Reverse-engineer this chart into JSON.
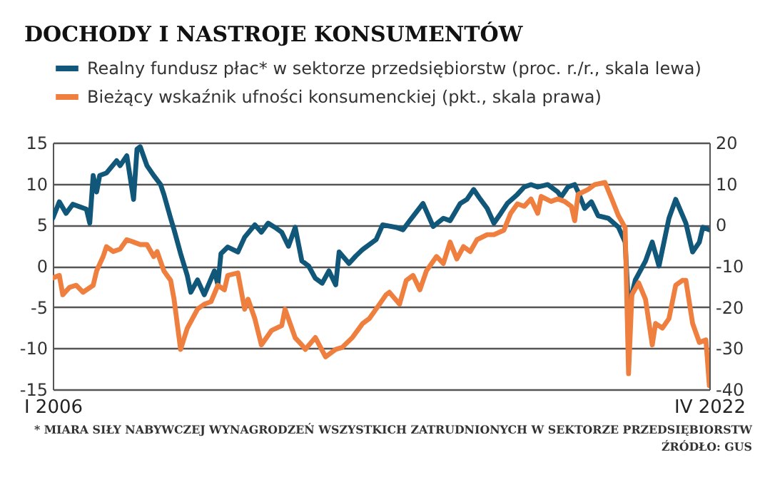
{
  "chart_data": {
    "type": "line",
    "title": "DOCHODY I NASTROJE KONSUMENTÓW",
    "annotations": [
      "* MIARA SIŁY NABYWCZEJ WYNAGRODZEŃ WSZYSTKICH ZATRUDNIONYCH W SEKTORZE PRZEDSIĘBIORSTW",
      "ŹRÓDŁO: GUS"
    ],
    "xlim": [
      "2006-01",
      "2022-04"
    ],
    "xticks": [
      {
        "value": "2006-01",
        "label": "I 2006"
      },
      {
        "value": "2022-04",
        "label": "IV 2022"
      }
    ],
    "ylim": [
      -15,
      15
    ],
    "yticks": [
      -15,
      -10,
      -5,
      0,
      5,
      10,
      15
    ],
    "y2lim": [
      -40,
      20
    ],
    "y2ticks": [
      -40,
      -30,
      -20,
      -10,
      0,
      10,
      20
    ],
    "grid": "y",
    "legend": "top left",
    "line_style": "solid",
    "series": [
      {
        "name": "Realny fundusz płac* w sektorze przedsiębiorstw (proc. r./r., skala lewa)",
        "color": "#11577a",
        "x": [
          "2006-01",
          "2006-03",
          "2006-05",
          "2006-07",
          "2006-09",
          "2006-11",
          "2006-12",
          "2007-01",
          "2007-02",
          "2007-03",
          "2007-05",
          "2007-08",
          "2007-09",
          "2007-11",
          "2008-01",
          "2008-02",
          "2008-03",
          "2008-05",
          "2008-07",
          "2008-09",
          "2008-10",
          "2008-12",
          "2009-01",
          "2009-03",
          "2009-05",
          "2009-06",
          "2009-08",
          "2009-10",
          "2010-01",
          "2010-02",
          "2010-03",
          "2010-05",
          "2010-08",
          "2010-10",
          "2011-01",
          "2011-03",
          "2011-05",
          "2011-07",
          "2011-09",
          "2011-11",
          "2012-01",
          "2012-03",
          "2012-05",
          "2012-07",
          "2012-09",
          "2012-11",
          "2013-01",
          "2013-02",
          "2013-05",
          "2013-07",
          "2013-09",
          "2013-11",
          "2014-01",
          "2014-03",
          "2014-07",
          "2014-09",
          "2014-11",
          "2015-03",
          "2015-06",
          "2015-09",
          "2015-11",
          "2016-02",
          "2016-04",
          "2016-06",
          "2016-08",
          "2016-10",
          "2016-12",
          "2017-02",
          "2017-04",
          "2017-07",
          "2017-09",
          "2017-11",
          "2018-01",
          "2018-04",
          "2018-07",
          "2018-08",
          "2018-10",
          "2018-12",
          "2019-01",
          "2019-03",
          "2019-05",
          "2019-07",
          "2019-10",
          "2020-01",
          "2020-03",
          "2020-04",
          "2020-06",
          "2020-09",
          "2020-11",
          "2021-01",
          "2021-04",
          "2021-06",
          "2021-09",
          "2021-11",
          "2022-01",
          "2022-02",
          "2022-04"
        ],
        "values": [
          5.8,
          7.8,
          6.4,
          7.5,
          7.2,
          6.9,
          5.2,
          11.0,
          9.0,
          11.0,
          11.3,
          12.8,
          12.2,
          13.4,
          8.1,
          14.2,
          14.5,
          12.2,
          11.0,
          9.9,
          8.7,
          5.8,
          4.4,
          1.5,
          -1.2,
          -3.2,
          -1.7,
          -3.5,
          -0.6,
          -2.3,
          1.5,
          2.3,
          1.7,
          3.5,
          5.0,
          4.1,
          5.2,
          4.7,
          4.1,
          2.4,
          4.7,
          0.6,
          0.0,
          -1.5,
          -2.1,
          -0.6,
          -2.3,
          1.7,
          0.3,
          1.2,
          2.0,
          2.6,
          3.2,
          5.0,
          4.7,
          4.4,
          5.5,
          7.6,
          4.8,
          5.8,
          5.5,
          7.6,
          8.1,
          9.3,
          8.1,
          7.0,
          5.2,
          6.4,
          7.6,
          8.7,
          9.6,
          9.9,
          9.6,
          9.9,
          9.0,
          8.4,
          9.6,
          9.9,
          9.0,
          7.0,
          7.8,
          6.1,
          5.8,
          4.7,
          2.9,
          -5.2,
          -1.7,
          0.6,
          2.9,
          0.0,
          5.8,
          8.1,
          5.2,
          1.7,
          2.9,
          4.7,
          4.4
        ]
      },
      {
        "name": "Bieżący wskaźnik ufności konsumenckiej (pkt., skala prawa)",
        "color": "#ef7f3f",
        "axis": "y2",
        "x": [
          "2006-01",
          "2006-03",
          "2006-04",
          "2006-06",
          "2006-08",
          "2006-10",
          "2007-01",
          "2007-02",
          "2007-04",
          "2007-05",
          "2007-07",
          "2007-09",
          "2007-11",
          "2008-01",
          "2008-03",
          "2008-05",
          "2008-07",
          "2008-08",
          "2008-10",
          "2008-12",
          "2009-01",
          "2009-03",
          "2009-05",
          "2009-08",
          "2009-10",
          "2009-12",
          "2010-02",
          "2010-04",
          "2010-05",
          "2010-08",
          "2010-10",
          "2010-11",
          "2011-01",
          "2011-03",
          "2011-06",
          "2011-09",
          "2011-10",
          "2012-01",
          "2012-03",
          "2012-04",
          "2012-07",
          "2012-10",
          "2013-01",
          "2013-03",
          "2013-06",
          "2013-09",
          "2013-11",
          "2014-02",
          "2014-04",
          "2014-05",
          "2014-08",
          "2014-10",
          "2014-12",
          "2015-02",
          "2015-04",
          "2015-07",
          "2015-09",
          "2015-11",
          "2016-01",
          "2016-03",
          "2016-05",
          "2016-07",
          "2016-10",
          "2016-12",
          "2017-03",
          "2017-05",
          "2017-07",
          "2017-09",
          "2017-11",
          "2018-01",
          "2018-02",
          "2018-05",
          "2018-07",
          "2018-09",
          "2018-11",
          "2018-12",
          "2019-01",
          "2019-04",
          "2019-06",
          "2019-09",
          "2019-11",
          "2020-01",
          "2020-03",
          "2020-04",
          "2020-05",
          "2020-07",
          "2020-09",
          "2020-11",
          "2020-12",
          "2021-02",
          "2021-04",
          "2021-06",
          "2021-08",
          "2021-09",
          "2021-11",
          "2022-01",
          "2022-03",
          "2022-04"
        ],
        "values": [
          -12.9,
          -12.3,
          -17,
          -15.2,
          -14.7,
          -16.4,
          -14.7,
          -11.2,
          -7.7,
          -5.3,
          -6.5,
          -5.9,
          -3.6,
          -4.2,
          -4.8,
          -4.8,
          -7.7,
          -6.5,
          -11.2,
          -13.5,
          -18.1,
          -30.3,
          -25.1,
          -20.5,
          -19.3,
          -18.7,
          -14.7,
          -15.8,
          -12.3,
          -11.7,
          -20.5,
          -18.1,
          -22.8,
          -29.2,
          -25.7,
          -24.5,
          -20.5,
          -27.5,
          -29.2,
          -30.3,
          -27.4,
          -32.1,
          -30.3,
          -29.8,
          -27.4,
          -24,
          -22.8,
          -19.3,
          -17,
          -16.4,
          -19.3,
          -13.5,
          -12.3,
          -15.8,
          -11.2,
          -7.7,
          -9.4,
          -4.2,
          -8.3,
          -5.3,
          -6.5,
          -3.6,
          -2.4,
          -2.4,
          -1.3,
          2.8,
          5.1,
          4.5,
          6.3,
          2.8,
          6.9,
          5.7,
          6.3,
          5.7,
          4.5,
          1.0,
          7.4,
          8.6,
          9.8,
          10.3,
          6.3,
          2.2,
          -0.7,
          -36.2,
          -17,
          -14.1,
          -18.1,
          -29.2,
          -24,
          -25.1,
          -22.8,
          -14.7,
          -13.5,
          -13.5,
          -24,
          -28.6,
          -28.0,
          -39.1
        ]
      }
    ]
  }
}
